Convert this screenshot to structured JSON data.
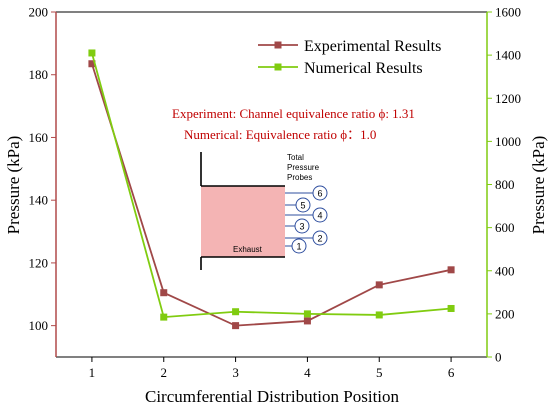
{
  "chart_data": {
    "type": "line",
    "xlabel": "Circumferential Distribution Position",
    "ylabel_left": "Pressure (kPa)",
    "ylabel_right": "Pressure (kPa)",
    "x": [
      1,
      2,
      3,
      4,
      5,
      6
    ],
    "x_ticks": [
      "1",
      "2",
      "3",
      "4",
      "5",
      "6"
    ],
    "xlim": [
      0.5,
      6.5
    ],
    "ylim_left": [
      90,
      200
    ],
    "ylim_right": [
      0,
      1600
    ],
    "y_ticks_left": [
      "100",
      "120",
      "140",
      "160",
      "180",
      "200"
    ],
    "y_ticks_right": [
      "0",
      "200",
      "400",
      "600",
      "800",
      "1000",
      "1200",
      "1400",
      "1600"
    ],
    "grid": false,
    "legend_position": "top-right",
    "series": [
      {
        "name": "Experimental Results",
        "axis": "left",
        "color": "#a04848",
        "marker": "square",
        "values": [
          183.5,
          110.5,
          100,
          101.5,
          113,
          117.8
        ]
      },
      {
        "name": "Numerical Results",
        "axis": "right",
        "color": "#80cc10",
        "marker": "square",
        "values": [
          1410,
          185,
          210,
          200,
          195,
          225
        ]
      }
    ],
    "annotations": [
      "Experiment: Channel equivalence ratio ϕ: 1.31",
      "Numerical: Equivalence ratio ϕ：1.0"
    ]
  },
  "inset": {
    "header_lines": [
      "Total",
      "Pressure",
      "Probes"
    ],
    "exhaust_label": "Exhaust",
    "probe_labels": [
      "1",
      "2",
      "3",
      "4",
      "5",
      "6"
    ],
    "fill_color": "#f4b4b4"
  },
  "colors": {
    "left_axis": "#b04a4a",
    "right_axis": "#80cc10",
    "annotation_text": "#c00000"
  }
}
